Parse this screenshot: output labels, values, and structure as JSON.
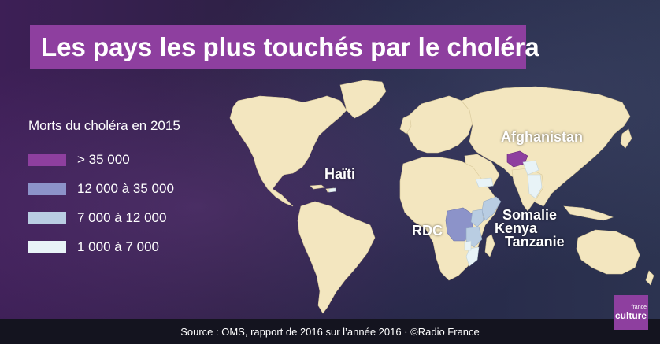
{
  "title": "Les pays les plus touchés par le choléra",
  "legend": {
    "title": "Morts du choléra en 2015",
    "items": [
      {
        "label": "> 35 000",
        "color": "#8e3f9f"
      },
      {
        "label": "12 000 à 35 000",
        "color": "#8c93c9"
      },
      {
        "label": "7 000 à 12 000",
        "color": "#b9cde2"
      },
      {
        "label": "1 000 à 7 000",
        "color": "#e8f3f7"
      }
    ]
  },
  "colors": {
    "land": "#f3e6bf",
    "title_bg": "#8e3f9f",
    "footer_bg": "#14141f"
  },
  "countries": {
    "afghanistan": "Afghanistan",
    "haiti": "Haïti",
    "rdc": "RDC",
    "somalie": "Somalie",
    "kenya": "Kenya",
    "tanzanie": "Tanzanie"
  },
  "footer": "Source : OMS, rapport de 2016 sur l’année 2016  ·  ©Radio France",
  "logo": {
    "line1": "france",
    "line2": "culture"
  }
}
